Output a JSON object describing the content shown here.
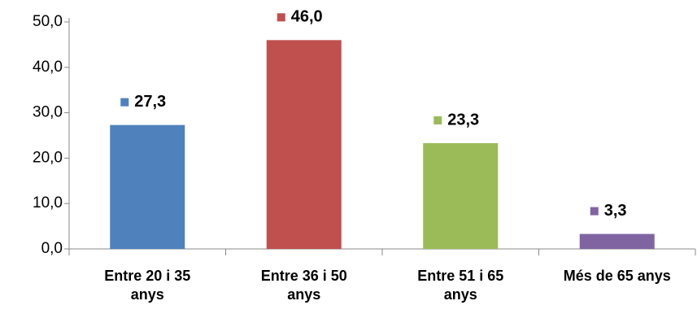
{
  "chart_data": {
    "type": "bar",
    "categories": [
      "Entre 20 i 35 anys",
      "Entre 36 i 50 anys",
      "Entre 51 i 65 anys",
      "Més de 65 anys"
    ],
    "values": [
      27.3,
      46.0,
      23.3,
      3.3
    ],
    "value_labels": [
      "27,3",
      "46,0",
      "23,3",
      "3,3"
    ],
    "colors": [
      "#4f81bd",
      "#c0504d",
      "#9bbb59",
      "#8064a2"
    ],
    "ylim": [
      0,
      50
    ],
    "yticks": [
      {
        "value": 0,
        "label": "0,0"
      },
      {
        "value": 10,
        "label": "10,0"
      },
      {
        "value": 20,
        "label": "20,0"
      },
      {
        "value": 30,
        "label": "30,0"
      },
      {
        "value": 40,
        "label": "40,0"
      },
      {
        "value": 50,
        "label": "50,0"
      }
    ]
  }
}
